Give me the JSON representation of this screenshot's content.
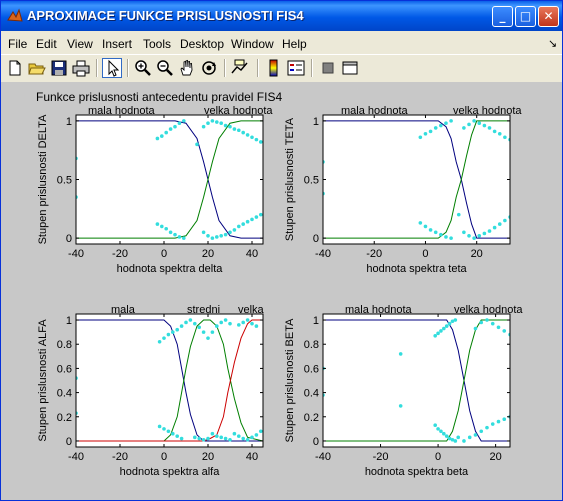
{
  "window": {
    "title": "APROXIMACE FUNKCE PRISLUSNOSTI FIS4",
    "buttons": {
      "minimize": "_",
      "maximize": "□",
      "close": "✕"
    }
  },
  "menu": [
    "File",
    "Edit",
    "View",
    "Insert",
    "Tools",
    "Desktop",
    "Window",
    "Help"
  ],
  "menu_dock_glyph": "↘",
  "toolbar": [
    "new-file-icon",
    "open-folder-icon",
    "save-icon",
    "print-icon",
    "pointer-arrow-icon",
    "zoom-in-icon",
    "zoom-out-icon",
    "pan-hand-icon",
    "rotate-3d-icon",
    "data-cursor-icon",
    "colorbar-icon",
    "legend-icon",
    "hide-plot-tools-icon",
    "show-plot-tools-icon"
  ],
  "figure_title": "Funkce prislusnosti antecedentu pravidel FIS4",
  "colors": {
    "blue_line": "#00007f",
    "green_line": "#007f00",
    "red_line": "#cc0000",
    "dots": "#33dddd",
    "figure_bg": "#c8c8c8",
    "axes_bg": "#ffffff"
  },
  "chart_data": [
    {
      "type": "line",
      "title": "",
      "xlabel": "hodnota spektra delta",
      "ylabel": "Stupen prislusnosti DELTA",
      "xlim": [
        -40,
        45
      ],
      "ylim": [
        -0.05,
        1.05
      ],
      "xticks": [
        -40,
        -20,
        0,
        20,
        40
      ],
      "yticks": [
        0,
        0.5,
        1
      ],
      "xtick_labels": [
        "-40",
        "-20",
        "0",
        "20",
        "40"
      ],
      "ytick_labels": [
        "0",
        "0.5",
        "1"
      ],
      "legend_labels": [
        "mala hodnota",
        "velka hodnota"
      ],
      "series": [
        {
          "name": "mala hodnota",
          "color": "#00007f",
          "x": [
            -40,
            5,
            10,
            15,
            18,
            20,
            22,
            25,
            30,
            35,
            40,
            45
          ],
          "y": [
            1,
            1,
            0.98,
            0.85,
            0.65,
            0.5,
            0.35,
            0.15,
            0.02,
            0,
            0,
            0
          ]
        },
        {
          "name": "velka hodnota",
          "color": "#007f00",
          "x": [
            -40,
            5,
            10,
            15,
            18,
            20,
            22,
            25,
            30,
            35,
            40,
            45
          ],
          "y": [
            0,
            0,
            0.02,
            0.15,
            0.35,
            0.5,
            0.65,
            0.85,
            0.98,
            1,
            1,
            1
          ]
        },
        {
          "name": "body",
          "color": "#33dddd",
          "marker": "dots",
          "x": [
            -40,
            -40,
            -3,
            -1,
            1,
            3,
            5,
            7,
            9,
            -3,
            -1,
            1,
            3,
            5,
            7,
            9,
            15,
            18,
            20,
            22,
            24,
            26,
            28,
            30,
            32,
            34,
            36,
            38,
            40,
            42,
            44,
            18,
            20,
            22,
            24,
            26,
            28,
            30,
            32,
            34,
            36,
            38,
            40,
            42,
            44
          ],
          "y": [
            0.68,
            0.35,
            0.12,
            0.1,
            0.08,
            0.05,
            0.03,
            0.01,
            0,
            0.85,
            0.87,
            0.9,
            0.93,
            0.95,
            0.98,
            1,
            0.8,
            0.05,
            0.02,
            0,
            0.01,
            0.02,
            0.03,
            0.05,
            0.07,
            0.1,
            0.12,
            0.14,
            0.16,
            0.18,
            0.2,
            0.95,
            0.98,
            1,
            0.99,
            0.98,
            0.96,
            0.95,
            0.93,
            0.92,
            0.9,
            0.88,
            0.86,
            0.84,
            0.82
          ]
        }
      ]
    },
    {
      "type": "line",
      "title": "",
      "xlabel": "hodnota spektra teta",
      "ylabel": "Stupen prislusnosti TETA",
      "xlim": [
        -40,
        33
      ],
      "ylim": [
        -0.05,
        1.05
      ],
      "xticks": [
        -40,
        -20,
        0,
        20
      ],
      "yticks": [
        0,
        0.5,
        1
      ],
      "xtick_labels": [
        "-40",
        "-20",
        "0",
        "20"
      ],
      "ytick_labels": [
        "0",
        "0.5",
        "1"
      ],
      "legend_labels": [
        "mala hodnota",
        "velka hodnota"
      ],
      "series": [
        {
          "name": "mala hodnota",
          "color": "#00007f",
          "x": [
            -40,
            5,
            8,
            10,
            12,
            14,
            16,
            18,
            20,
            33
          ],
          "y": [
            1,
            1,
            0.95,
            0.85,
            0.65,
            0.5,
            0.3,
            0.12,
            0,
            0
          ]
        },
        {
          "name": "velka hodnota",
          "color": "#007f00",
          "x": [
            -40,
            5,
            8,
            10,
            12,
            14,
            16,
            18,
            20,
            33
          ],
          "y": [
            0,
            0,
            0.05,
            0.15,
            0.35,
            0.5,
            0.7,
            0.88,
            1,
            1
          ]
        },
        {
          "name": "body",
          "color": "#33dddd",
          "marker": "dots",
          "x": [
            -40,
            -40,
            -2,
            0,
            2,
            4,
            6,
            8,
            10,
            -2,
            0,
            2,
            4,
            6,
            8,
            10,
            13,
            15,
            17,
            19,
            21,
            23,
            25,
            27,
            29,
            31,
            33,
            15,
            17,
            19,
            21,
            23,
            25,
            27,
            29,
            31,
            33
          ],
          "y": [
            0.65,
            0.38,
            0.13,
            0.1,
            0.07,
            0.05,
            0.03,
            0.01,
            0,
            0.86,
            0.89,
            0.91,
            0.94,
            0.96,
            0.98,
            1,
            0.2,
            0.05,
            0.02,
            0,
            0.02,
            0.04,
            0.06,
            0.09,
            0.12,
            0.15,
            0.18,
            0.94,
            0.97,
            1,
            0.98,
            0.96,
            0.94,
            0.91,
            0.89,
            0.86,
            0.84
          ]
        }
      ]
    },
    {
      "type": "line",
      "title": "",
      "xlabel": "hodnota spektra alfa",
      "ylabel": "Stupen prislusnosti ALFA",
      "xlim": [
        -40,
        45
      ],
      "ylim": [
        -0.05,
        1.05
      ],
      "xticks": [
        -40,
        -20,
        0,
        20,
        40
      ],
      "yticks": [
        0,
        0.2,
        0.4,
        0.6,
        0.8,
        1
      ],
      "xtick_labels": [
        "-40",
        "-20",
        "0",
        "20",
        "40"
      ],
      "ytick_labels": [
        "0",
        "0.2",
        "0.4",
        "0.6",
        "0.8",
        "1"
      ],
      "legend_labels": [
        "mala",
        "stredni",
        "velka"
      ],
      "series": [
        {
          "name": "mala",
          "color": "#00007f",
          "x": [
            -40,
            0,
            3,
            6,
            8,
            10,
            12,
            15,
            18,
            45
          ],
          "y": [
            1,
            1,
            0.95,
            0.8,
            0.6,
            0.4,
            0.22,
            0.05,
            0,
            0
          ]
        },
        {
          "name": "stredni",
          "color": "#007f00",
          "x": [
            -40,
            0,
            3,
            6,
            8,
            10,
            12,
            15,
            18,
            21,
            24,
            27,
            29,
            32,
            35,
            38,
            45
          ],
          "y": [
            0,
            0,
            0.05,
            0.2,
            0.4,
            0.6,
            0.78,
            0.95,
            1,
            1,
            0.95,
            0.8,
            0.6,
            0.35,
            0.15,
            0.03,
            0
          ]
        },
        {
          "name": "velka",
          "color": "#cc0000",
          "x": [
            -40,
            18,
            21,
            24,
            27,
            29,
            32,
            35,
            38,
            40,
            45
          ],
          "y": [
            0,
            0,
            0.02,
            0.05,
            0.2,
            0.4,
            0.65,
            0.85,
            0.97,
            1,
            1
          ]
        },
        {
          "name": "body",
          "color": "#33dddd",
          "marker": "dots",
          "x": [
            -40,
            -40,
            -2,
            0,
            2,
            4,
            6,
            8,
            -2,
            0,
            2,
            4,
            6,
            8,
            10,
            12,
            14,
            16,
            18,
            20,
            22,
            24,
            26,
            28,
            30,
            14,
            16,
            18,
            20,
            22,
            24,
            26,
            28,
            30,
            32,
            34,
            36,
            38,
            40,
            42,
            44,
            34,
            36,
            38,
            40,
            42
          ],
          "y": [
            0.52,
            0.23,
            0.12,
            0.1,
            0.08,
            0.06,
            0.04,
            0.02,
            0.82,
            0.85,
            0.88,
            0.9,
            0.92,
            0.95,
            0.98,
            1,
            0.97,
            0.94,
            0.9,
            0.85,
            0.06,
            0.04,
            0.03,
            0.02,
            0.01,
            0.03,
            0.02,
            0.01,
            0.02,
            0.9,
            0.95,
            0.98,
            1,
            0.97,
            0.06,
            0.04,
            0.02,
            0.01,
            0.03,
            0.05,
            0.08,
            0.96,
            0.98,
            1,
            0.97,
            0.95
          ]
        }
      ]
    },
    {
      "type": "line",
      "title": "",
      "xlabel": "hodnota spektra beta",
      "ylabel": "Stupen prislusnosti BETA",
      "xlim": [
        -40,
        25
      ],
      "ylim": [
        -0.05,
        1.05
      ],
      "xticks": [
        -40,
        -20,
        0,
        20
      ],
      "yticks": [
        0,
        0.2,
        0.4,
        0.6,
        0.8,
        1
      ],
      "xtick_labels": [
        "-40",
        "-20",
        "0",
        "20"
      ],
      "ytick_labels": [
        "0",
        "0.2",
        "0.4",
        "0.6",
        "0.8",
        "1"
      ],
      "legend_labels": [
        "mala hodnota",
        "velka hodnota"
      ],
      "series": [
        {
          "name": "mala hodnota",
          "color": "#00007f",
          "x": [
            -40,
            3,
            5,
            7,
            9,
            11,
            13,
            15,
            25
          ],
          "y": [
            1,
            1,
            0.92,
            0.75,
            0.5,
            0.25,
            0.08,
            0,
            0
          ]
        },
        {
          "name": "velka hodnota",
          "color": "#007f00",
          "x": [
            -40,
            3,
            5,
            7,
            9,
            11,
            13,
            15,
            25
          ],
          "y": [
            0,
            0,
            0.08,
            0.25,
            0.5,
            0.75,
            0.92,
            1,
            1
          ]
        },
        {
          "name": "body",
          "color": "#33dddd",
          "marker": "dots",
          "x": [
            -40,
            -40,
            -13,
            -13,
            -1,
            0,
            1,
            2,
            3,
            4,
            5,
            6,
            -1,
            0,
            1,
            2,
            3,
            4,
            5,
            6,
            7,
            9,
            11,
            13,
            15,
            17,
            19,
            21,
            23,
            25,
            13,
            15,
            17,
            19,
            21,
            23,
            25
          ],
          "y": [
            0.6,
            0.38,
            0.72,
            0.29,
            0.13,
            0.1,
            0.08,
            0.06,
            0.04,
            0.02,
            0.01,
            0,
            0.87,
            0.89,
            0.91,
            0.93,
            0.95,
            0.97,
            0.99,
            1,
            0.03,
            0,
            0.03,
            0.05,
            0.08,
            0.11,
            0.14,
            0.16,
            0.18,
            0.2,
            0.93,
            0.98,
            1,
            0.97,
            0.94,
            0.91,
            0.88
          ]
        }
      ]
    }
  ]
}
